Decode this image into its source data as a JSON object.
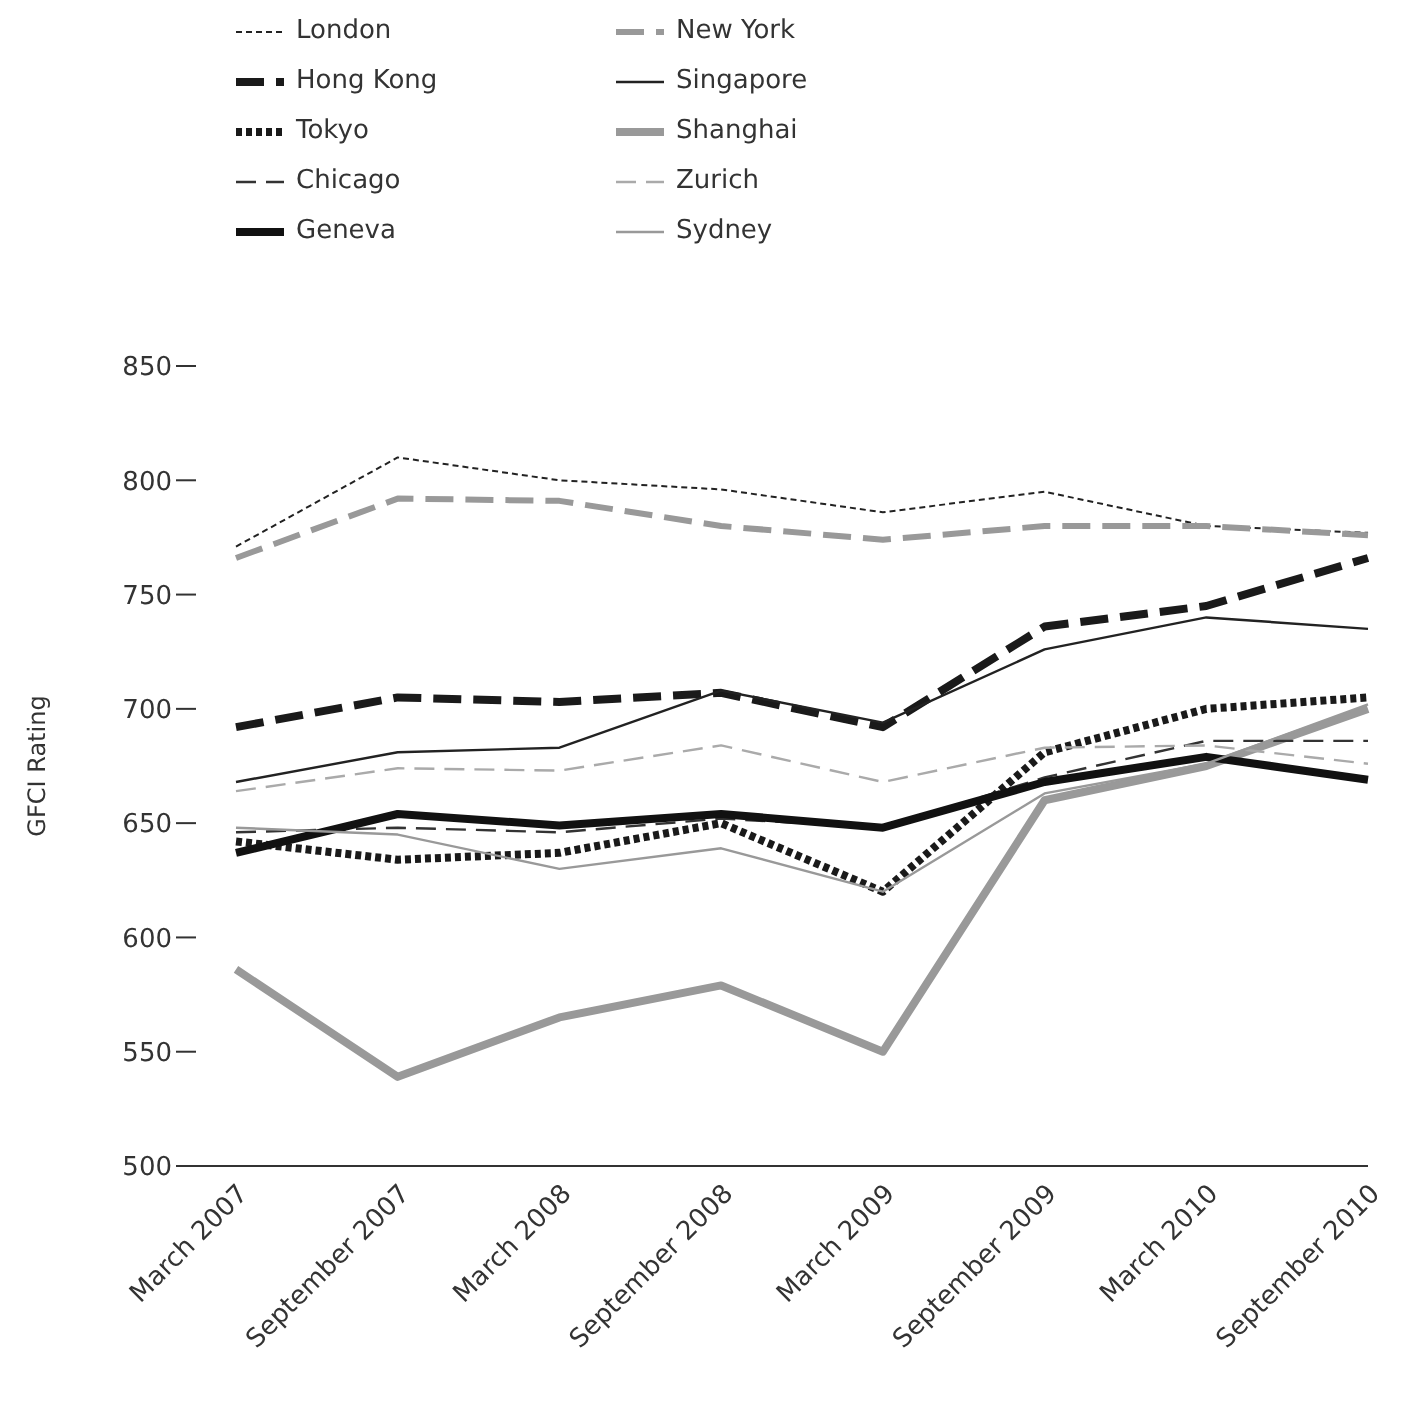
{
  "chart_data": {
    "type": "line",
    "ylabel": "GFCI Rating",
    "categories": [
      "March 2007",
      "September 2007",
      "March 2008",
      "September 2008",
      "March 2009",
      "September 2009",
      "March 2010",
      "September 2010"
    ],
    "ylim": [
      500,
      850
    ],
    "yticks": [
      500,
      550,
      600,
      650,
      700,
      750,
      800,
      850
    ],
    "grid": false,
    "legend": "top",
    "marker": "none",
    "series": [
      {
        "name": "London",
        "color": "#222222",
        "line_style": "dotted",
        "values": [
          771,
          810,
          800,
          796,
          786,
          795,
          780,
          777
        ]
      },
      {
        "name": "New York",
        "color": "#999999",
        "line_style": "dashed",
        "values": [
          766,
          792,
          791,
          780,
          774,
          780,
          780,
          776
        ]
      },
      {
        "name": "Hong Kong",
        "color": "#1a1a1a",
        "line_style": "dashed",
        "values": [
          692,
          705,
          703,
          707,
          692,
          736,
          745,
          766
        ]
      },
      {
        "name": "Singapore",
        "color": "#222222",
        "line_style": "solid",
        "values": [
          668,
          681,
          683,
          708,
          694,
          726,
          740,
          735
        ]
      },
      {
        "name": "Tokyo",
        "color": "#1a1a1a",
        "line_style": "dotted",
        "values": [
          642,
          634,
          637,
          650,
          620,
          681,
          700,
          705
        ]
      },
      {
        "name": "Shanghai",
        "color": "#999999",
        "line_style": "solid",
        "values": [
          586,
          539,
          565,
          579,
          550,
          660,
          675,
          700
        ]
      },
      {
        "name": "Chicago",
        "color": "#333333",
        "line_style": "dashed",
        "values": [
          646,
          648,
          646,
          652,
          648,
          670,
          686,
          686
        ]
      },
      {
        "name": "Zurich",
        "color": "#aaaaaa",
        "line_style": "dashed",
        "values": [
          664,
          674,
          673,
          684,
          668,
          683,
          684,
          676
        ]
      },
      {
        "name": "Geneva",
        "color": "#111111",
        "line_style": "solid",
        "values": [
          637,
          654,
          649,
          654,
          648,
          668,
          679,
          669
        ]
      },
      {
        "name": "Sydney",
        "color": "#999999",
        "line_style": "solid",
        "values": [
          648,
          645,
          630,
          639,
          620,
          663,
          676,
          702
        ]
      }
    ]
  }
}
